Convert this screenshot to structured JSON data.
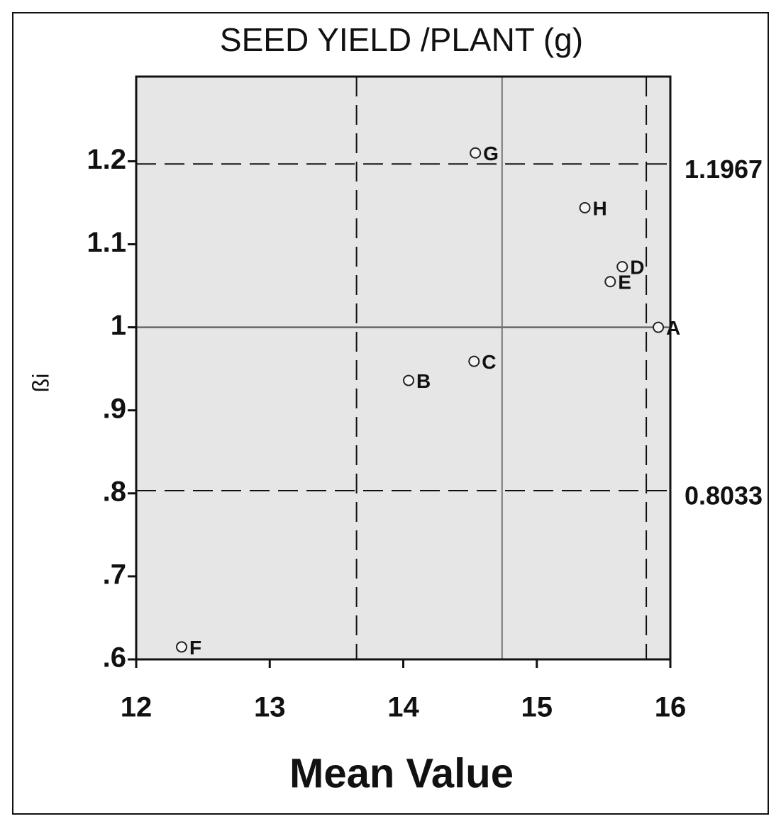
{
  "chart_data": {
    "type": "scatter",
    "title": "SEED YIELD /PLANT (g)",
    "xlabel": "Mean Value",
    "ylabel": "ßi",
    "labels": [
      "G",
      "H",
      "D",
      "E",
      "A",
      "C",
      "B",
      "F"
    ],
    "x": [
      14.54,
      15.36,
      15.64,
      15.55,
      15.91,
      14.53,
      14.04,
      12.34
    ],
    "values": [
      1.21,
      1.144,
      1.073,
      1.055,
      1.0,
      0.959,
      0.936,
      0.615
    ],
    "color": "#222222",
    "xlim": [
      12,
      16
    ],
    "xticks": [
      12,
      13,
      14,
      15,
      16
    ],
    "ylim": [
      0.6,
      1.302
    ],
    "yticks": [
      {
        "value": 0.6,
        "label": ".6"
      },
      {
        "value": 0.7,
        "label": ".7"
      },
      {
        "value": 0.8,
        "label": ".8"
      },
      {
        "value": 0.9,
        "label": ".9"
      },
      1,
      1.1,
      1.2
    ],
    "ref_lines": {
      "h_dashed": [
        1.1967,
        0.8033
      ],
      "h_solid": [
        1
      ],
      "v_dashed": [
        13.65,
        15.82
      ],
      "v_solid": [
        14.74
      ]
    }
  }
}
